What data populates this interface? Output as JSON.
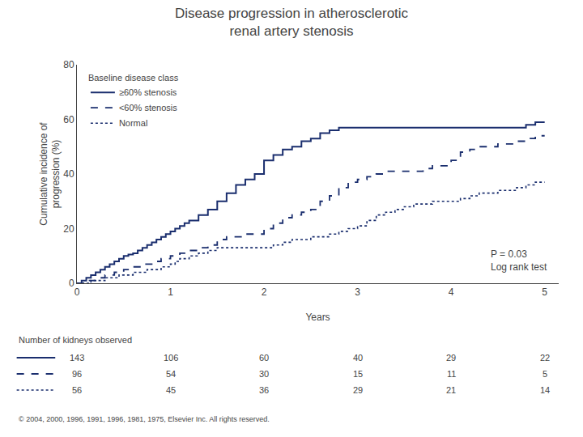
{
  "chart_data": {
    "type": "step",
    "title": "Disease progression in atherosclerotic\nrenal artery stenosis",
    "x_label": "Years",
    "y_label": "Cumulative incidence of\nprogression (%)",
    "xlim": [
      0,
      5.15
    ],
    "xticks": [
      0,
      1,
      2,
      3,
      4,
      5
    ],
    "ylim": [
      0,
      80
    ],
    "yticks": [
      0,
      20,
      40,
      60,
      80
    ],
    "grid": false,
    "legend": "upper left",
    "legend_title": "Baseline disease class",
    "color": "#1a2e6e",
    "annotation": "P = 0.03\nLog rank test",
    "table_title": "Number of kidneys observed",
    "footnote": "© 2004, 2000, 1996, 1991, 1996, 1981, 1975, Elsevier Inc. All rights reserved.",
    "series": [
      {
        "name": "≥60% stenosis",
        "line_style": "solid",
        "x": [
          0,
          0.05,
          0.1,
          0.15,
          0.2,
          0.25,
          0.3,
          0.35,
          0.4,
          0.45,
          0.5,
          0.55,
          0.6,
          0.65,
          0.7,
          0.75,
          0.8,
          0.85,
          0.9,
          0.95,
          1.0,
          1.05,
          1.1,
          1.15,
          1.2,
          1.3,
          1.4,
          1.5,
          1.6,
          1.7,
          1.8,
          1.9,
          2.0,
          2.1,
          2.2,
          2.3,
          2.4,
          2.5,
          2.6,
          2.7,
          2.8,
          2.9,
          3.0,
          3.1,
          3.2,
          3.3,
          3.5,
          3.7,
          4.0,
          4.1,
          4.5,
          4.8,
          4.9,
          5.0
        ],
        "values": [
          0,
          1,
          2,
          3,
          4,
          5,
          6,
          7,
          8,
          9,
          10,
          10.5,
          11,
          12,
          13,
          14,
          15,
          16,
          17,
          18,
          19,
          20,
          21,
          22,
          23,
          25,
          27,
          30,
          33,
          36,
          38,
          40,
          45,
          47,
          49,
          50,
          52,
          53,
          55,
          56,
          57,
          57,
          57,
          57,
          57,
          57,
          57,
          57,
          57,
          57,
          57,
          58,
          59,
          59
        ],
        "at_risk": [
          143,
          106,
          60,
          40,
          29,
          22
        ]
      },
      {
        "name": "<60% stenosis",
        "line_style": "dash",
        "x": [
          0,
          0.1,
          0.2,
          0.3,
          0.4,
          0.5,
          0.6,
          0.7,
          0.8,
          0.9,
          1.0,
          1.1,
          1.2,
          1.3,
          1.4,
          1.5,
          1.6,
          1.8,
          2.0,
          2.1,
          2.2,
          2.3,
          2.4,
          2.5,
          2.6,
          2.7,
          2.8,
          2.9,
          3.0,
          3.1,
          3.2,
          3.3,
          3.5,
          3.7,
          3.8,
          4.0,
          4.1,
          4.2,
          4.3,
          4.5,
          4.7,
          4.8,
          4.9,
          5.0
        ],
        "values": [
          0,
          1,
          2,
          3,
          4,
          5,
          6,
          7,
          8,
          9,
          10,
          11,
          12,
          13,
          14,
          16,
          17,
          18,
          20,
          22,
          24,
          25,
          26,
          27,
          30,
          32,
          35,
          37,
          38,
          39,
          40,
          41,
          41,
          42,
          43,
          45,
          48,
          49,
          50,
          51,
          52,
          53,
          54,
          54
        ],
        "at_risk": [
          96,
          54,
          30,
          15,
          11,
          5
        ]
      },
      {
        "name": "Normal",
        "line_style": "dot",
        "x": [
          0,
          0.15,
          0.3,
          0.45,
          0.6,
          0.75,
          0.9,
          1.0,
          1.05,
          1.1,
          1.2,
          1.3,
          1.4,
          1.5,
          1.6,
          1.7,
          1.8,
          1.9,
          2.0,
          2.1,
          2.2,
          2.3,
          2.5,
          2.7,
          2.8,
          2.9,
          3.0,
          3.1,
          3.2,
          3.3,
          3.4,
          3.5,
          3.6,
          3.8,
          4.0,
          4.1,
          4.2,
          4.3,
          4.5,
          4.7,
          4.8,
          4.9,
          5.0
        ],
        "values": [
          0,
          1,
          2,
          3,
          4,
          5,
          6,
          7,
          8,
          9,
          10,
          11,
          12,
          13,
          13,
          13,
          13,
          13,
          13,
          14,
          15,
          16,
          17,
          18,
          19,
          20,
          21,
          23,
          25,
          26,
          27,
          28,
          29,
          30,
          30,
          31,
          32,
          33,
          34,
          35,
          36,
          37,
          37
        ],
        "at_risk": [
          56,
          45,
          36,
          29,
          21,
          14
        ]
      }
    ]
  }
}
